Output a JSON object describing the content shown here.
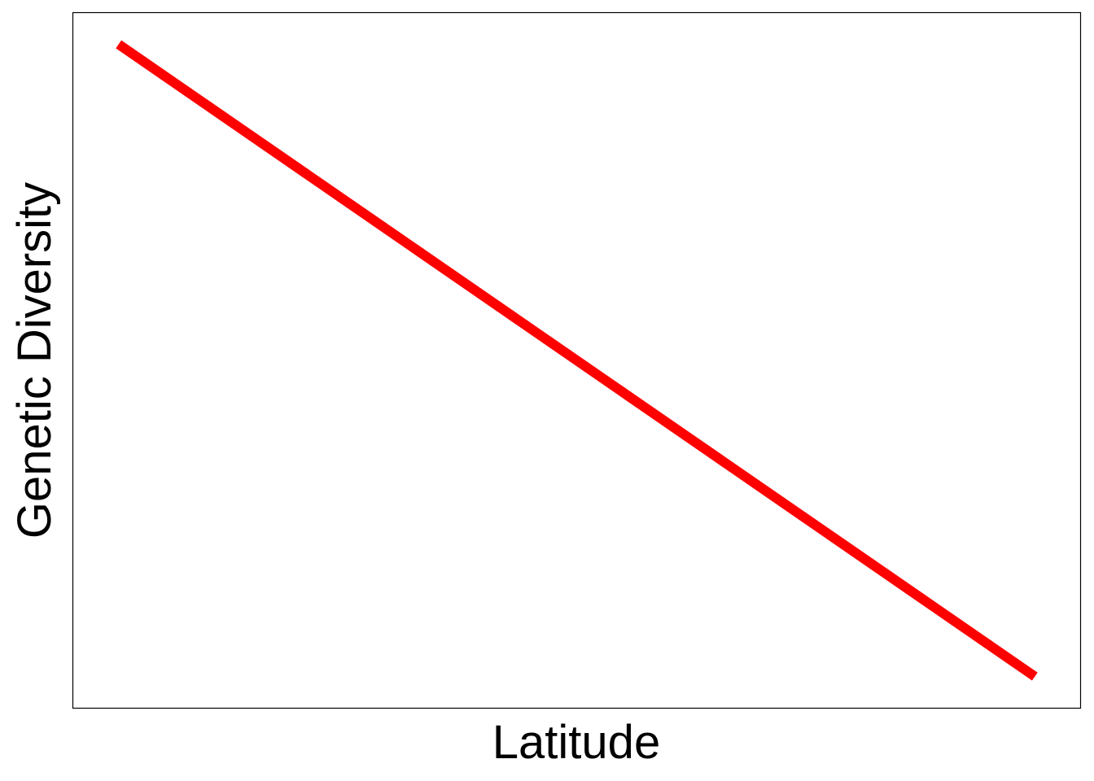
{
  "chart_data": {
    "type": "line",
    "title": "",
    "xlabel": "Latitude",
    "ylabel": "Genetic Diversity",
    "x_ticks_shown": false,
    "y_ticks_shown": false,
    "grid": false,
    "legend": "none",
    "xlim": [
      0,
      1
    ],
    "ylim": [
      0,
      1
    ],
    "series": [
      {
        "color": "#ff0000",
        "x": [
          0.045,
          0.955
        ],
        "y": [
          0.955,
          0.045
        ]
      }
    ]
  }
}
